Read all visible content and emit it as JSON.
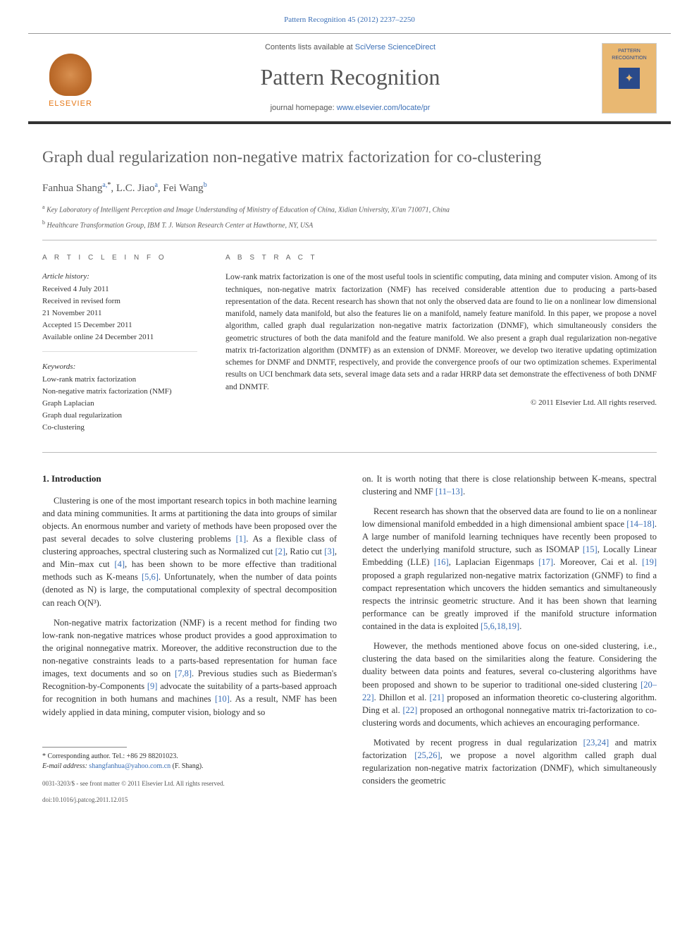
{
  "header": {
    "citation": "Pattern Recognition 45 (2012) 2237–2250",
    "contents_prefix": "Contents lists available at ",
    "contents_link": "SciVerse ScienceDirect",
    "journal_name": "Pattern Recognition",
    "homepage_prefix": "journal homepage: ",
    "homepage_link": "www.elsevier.com/locate/pr",
    "publisher_label": "ELSEVIER",
    "cover_text_top": "PATTERN",
    "cover_text_bottom": "RECOGNITION",
    "cover_glyph": "✦"
  },
  "article": {
    "title": "Graph dual regularization non-negative matrix factorization for co-clustering",
    "authors_html": "Fanhua Shang",
    "author1": "Fanhua Shang",
    "author1_sup": "a,",
    "author1_corr": "*",
    "author2": ", L.C. Jiao",
    "author2_sup": "a",
    "author3": ", Fei Wang",
    "author3_sup": "b",
    "affiliations": [
      {
        "sup": "a",
        "text": " Key Laboratory of Intelligent Perception and Image Understanding of Ministry of Education of China, Xidian University, Xi'an 710071, China"
      },
      {
        "sup": "b",
        "text": " Healthcare Transformation Group, IBM T. J. Watson Research Center at Hawthorne, NY, USA"
      }
    ]
  },
  "info": {
    "heading": "A R T I C L E   I N F O",
    "history_label": "Article history:",
    "history": [
      "Received 4 July 2011",
      "Received in revised form",
      "21 November 2011",
      "Accepted 15 December 2011",
      "Available online 24 December 2011"
    ],
    "keywords_label": "Keywords:",
    "keywords": [
      "Low-rank matrix factorization",
      "Non-negative matrix factorization (NMF)",
      "Graph Laplacian",
      "Graph dual regularization",
      "Co-clustering"
    ]
  },
  "abstract": {
    "heading": "A B S T R A C T",
    "text": "Low-rank matrix factorization is one of the most useful tools in scientific computing, data mining and computer vision. Among of its techniques, non-negative matrix factorization (NMF) has received considerable attention due to producing a parts-based representation of the data. Recent research has shown that not only the observed data are found to lie on a nonlinear low dimensional manifold, namely data manifold, but also the features lie on a manifold, namely feature manifold. In this paper, we propose a novel algorithm, called graph dual regularization non-negative matrix factorization (DNMF), which simultaneously considers the geometric structures of both the data manifold and the feature manifold. We also present a graph dual regularization non-negative matrix tri-factorization algorithm (DNMTF) as an extension of DNMF. Moreover, we develop two iterative updating optimization schemes for DNMF and DNMTF, respectively, and provide the convergence proofs of our two optimization schemes. Experimental results on UCI benchmark data sets, several image data sets and a radar HRRP data set demonstrate the effectiveness of both DNMF and DNMTF.",
    "copyright": "© 2011 Elsevier Ltd. All rights reserved."
  },
  "body": {
    "section_number": "1.",
    "section_title": "Introduction",
    "col1": [
      "Clustering is one of the most important research topics in both machine learning and data mining communities. It arms at partitioning the data into groups of similar objects. An enormous number and variety of methods have been proposed over the past several decades to solve clustering problems [1]. As a flexible class of clustering approaches, spectral clustering such as Normalized cut [2], Ratio cut [3], and Min–max cut [4], has been shown to be more effective than traditional methods such as K-means [5,6]. Unfortunately, when the number of data points (denoted as N) is large, the computational complexity of spectral decomposition can reach O(N³).",
      "Non-negative matrix factorization (NMF) is a recent method for finding two low-rank non-negative matrices whose product provides a good approximation to the original nonnegative matrix. Moreover, the additive reconstruction due to the non-negative constraints leads to a parts-based representation for human face images, text documents and so on [7,8]. Previous studies such as Biederman's Recognition-by-Components [9] advocate the suitability of a parts-based approach for recognition in both humans and machines [10]. As a result, NMF has been widely applied in data mining, computer vision, biology and so"
    ],
    "col2": [
      "on. It is worth noting that there is close relationship between K-means, spectral clustering and NMF [11–13].",
      "Recent research has shown that the observed data are found to lie on a nonlinear low dimensional manifold embedded in a high dimensional ambient space [14–18]. A large number of manifold learning techniques have recently been proposed to detect the underlying manifold structure, such as ISOMAP [15], Locally Linear Embedding (LLE) [16], Laplacian Eigenmaps [17]. Moreover, Cai et al. [19] proposed a graph regularized non-negative matrix factorization (GNMF) to find a compact representation which uncovers the hidden semantics and simultaneously respects the intrinsic geometric structure. And it has been shown that learning performance can be greatly improved if the manifold structure information contained in the data is exploited [5,6,18,19].",
      "However, the methods mentioned above focus on one-sided clustering, i.e., clustering the data based on the similarities along the feature. Considering the duality between data points and features, several co-clustering algorithms have been proposed and shown to be superior to traditional one-sided clustering [20–22]. Dhillon et al. [21] proposed an information theoretic co-clustering algorithm. Ding et al. [22] proposed an orthogonal nonnegative matrix tri-factorization to co-clustering words and documents, which achieves an encouraging performance.",
      "Motivated by recent progress in dual regularization [23,24] and matrix factorization [25,26], we propose a novel algorithm called graph dual regularization non-negative matrix factorization (DNMF), which simultaneously considers the geometric"
    ]
  },
  "footnote": {
    "corr_label": "* Corresponding author. Tel.: +86 29 88201023.",
    "email_label": "E-mail address: ",
    "email": "shangfanhua@yahoo.com.cn",
    "email_suffix": " (F. Shang)."
  },
  "bottom": {
    "line1": "0031-3203/$ - see front matter © 2011 Elsevier Ltd. All rights reserved.",
    "line2": "doi:10.1016/j.patcog.2011.12.015"
  },
  "colors": {
    "link": "#3b6fb6",
    "publisher": "#e67817",
    "title": "#626262",
    "rule": "#333333"
  }
}
